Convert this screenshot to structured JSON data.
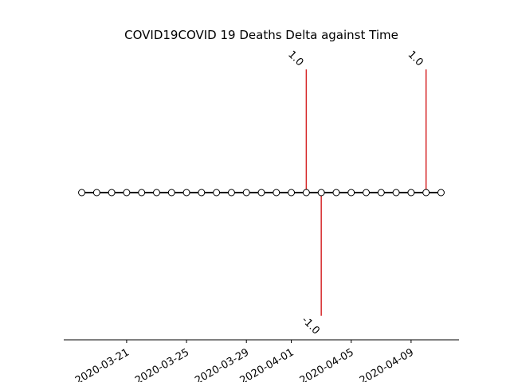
{
  "chart_data": {
    "type": "stem_timeline",
    "title": "COVID19COVID 19 Deaths Delta against Time",
    "x": [
      "2020-03-18",
      "2020-03-19",
      "2020-03-20",
      "2020-03-21",
      "2020-03-22",
      "2020-03-23",
      "2020-03-24",
      "2020-03-25",
      "2020-03-26",
      "2020-03-27",
      "2020-03-28",
      "2020-03-29",
      "2020-03-30",
      "2020-03-31",
      "2020-04-01",
      "2020-04-02",
      "2020-04-03",
      "2020-04-04",
      "2020-04-05",
      "2020-04-06",
      "2020-04-07",
      "2020-04-08",
      "2020-04-09",
      "2020-04-10",
      "2020-04-11"
    ],
    "events": [
      {
        "date": "2020-04-02",
        "value": 1.0,
        "label": "1.0"
      },
      {
        "date": "2020-04-03",
        "value": -1.0,
        "label": "-1.0"
      },
      {
        "date": "2020-04-10",
        "value": 1.0,
        "label": "1.0"
      }
    ],
    "x_ticks": [
      "2020-03-21",
      "2020-03-25",
      "2020-03-29",
      "2020-04-01",
      "2020-04-05",
      "2020-04-09"
    ],
    "ylim": [
      -1.1,
      1.1
    ],
    "grid": false,
    "colors": {
      "stem": "#d62728",
      "baseline": "#000000",
      "marker_fill": "#ffffff",
      "marker_edge": "#000000"
    }
  }
}
